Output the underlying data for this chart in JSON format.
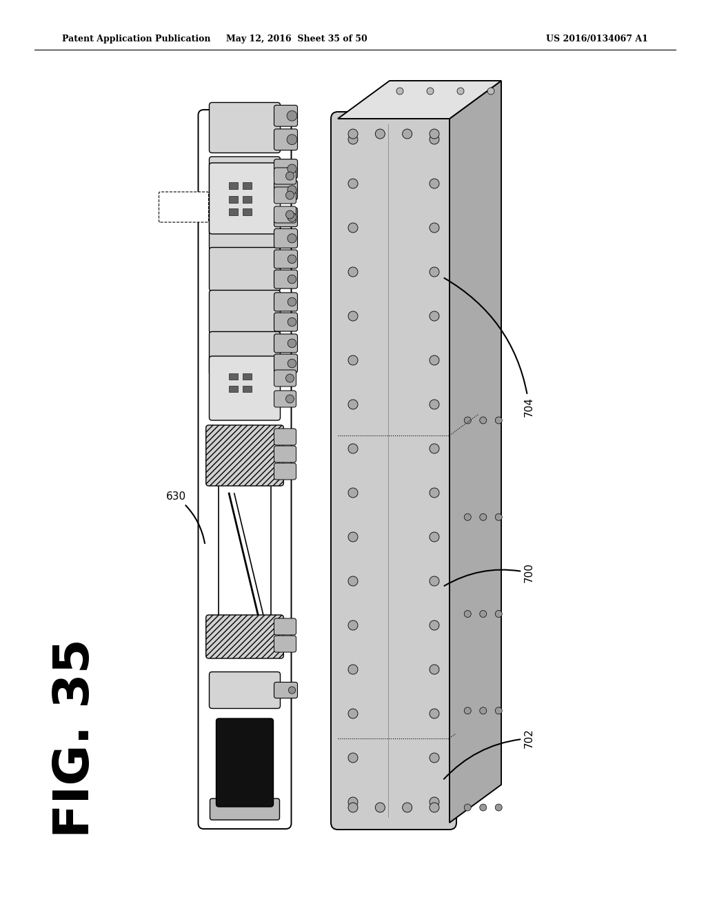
{
  "header_left": "Patent Application Publication",
  "header_mid": "May 12, 2016  Sheet 35 of 50",
  "header_right": "US 2016/0134067 A1",
  "fig_label": "FIG. 35",
  "background_color": "#ffffff",
  "line_color": "#000000",
  "gray_light": "#d4d4d4",
  "gray_mid": "#b8b8b8",
  "gray_dark": "#909090",
  "gray_box": "#c8c8c8"
}
